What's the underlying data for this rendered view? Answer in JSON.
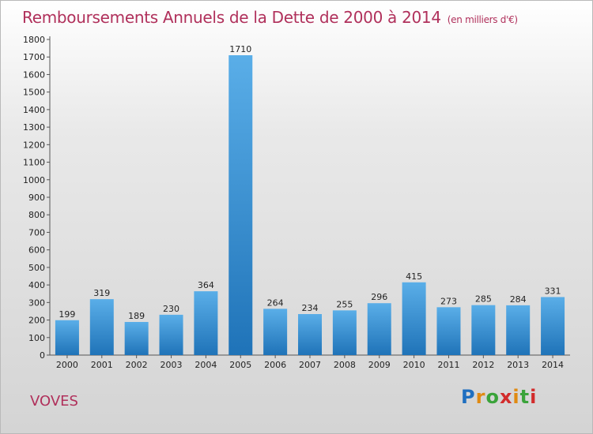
{
  "header": {
    "title": "Remboursements Annuels de la Dette de 2000 à 2014",
    "unit": "(en milliers d'€)"
  },
  "footer": {
    "place": "VOVES",
    "logo": "Proxiti"
  },
  "colors": {
    "bar_light": "#5aaee8",
    "bar_dark": "#1f73b8",
    "title": "#b0305b"
  },
  "chart_data": {
    "type": "bar",
    "title": "Remboursements Annuels de la Dette de 2000 à 2014",
    "subtitle": "(en milliers d'€)",
    "categories": [
      "2000",
      "2001",
      "2002",
      "2003",
      "2004",
      "2005",
      "2006",
      "2007",
      "2008",
      "2009",
      "2010",
      "2011",
      "2012",
      "2013",
      "2014"
    ],
    "values": [
      199,
      319,
      189,
      230,
      364,
      1710,
      264,
      234,
      255,
      296,
      415,
      273,
      285,
      284,
      331
    ],
    "ylim": [
      0,
      1800
    ],
    "yticks": [
      0,
      100,
      200,
      300,
      400,
      500,
      600,
      700,
      800,
      900,
      1000,
      1100,
      1200,
      1300,
      1400,
      1500,
      1600,
      1700,
      1800
    ],
    "grid": false,
    "legend": "none",
    "xlabel": "",
    "ylabel": ""
  }
}
